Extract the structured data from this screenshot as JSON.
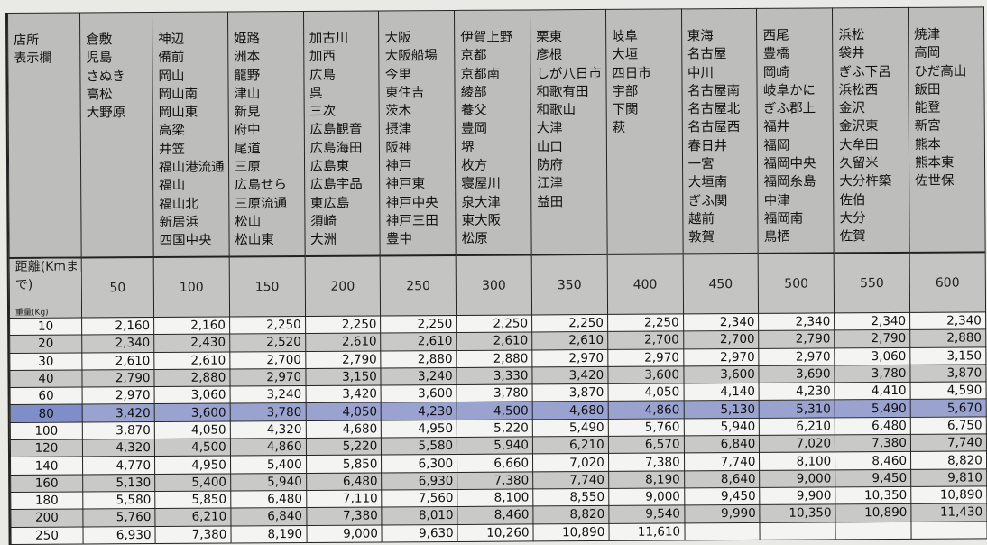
{
  "header_label": [
    "店所",
    "表示欄"
  ],
  "distance_label": "距離(Kmまで)",
  "weight_label": "重量(Kg)",
  "columns": [
    {
      "distance": "50",
      "stations": [
        "倉敷",
        "児島",
        "さぬき",
        "高松",
        "大野原"
      ]
    },
    {
      "distance": "100",
      "stations": [
        "神辺",
        "備前",
        "岡山",
        "岡山南",
        "岡山東",
        "高梁",
        "井笠",
        "福山港流通",
        "福山",
        "福山北",
        "新居浜",
        "四国中央"
      ]
    },
    {
      "distance": "150",
      "stations": [
        "姫路",
        "洲本",
        "龍野",
        "津山",
        "新見",
        "府中",
        "尾道",
        "三原",
        "広島せら",
        "三原流通",
        "松山",
        "松山東"
      ]
    },
    {
      "distance": "200",
      "stations": [
        "加古川",
        "加西",
        "広島",
        "呉",
        "三次",
        "広島観音",
        "広島海田",
        "広島東",
        "広島宇品",
        "東広島",
        "須崎",
        "大洲"
      ]
    },
    {
      "distance": "250",
      "stations": [
        "大阪",
        "大阪船場",
        "今里",
        "東住吉",
        "茨木",
        "摂津",
        "阪神",
        "神戸",
        "神戸東",
        "神戸中央",
        "神戸三田",
        "豊中"
      ]
    },
    {
      "distance": "300",
      "stations": [
        "伊賀上野",
        "京都",
        "京都南",
        "綾部",
        "養父",
        "豊岡",
        "堺",
        "枚方",
        "寝屋川",
        "泉大津",
        "東大阪",
        "松原"
      ]
    },
    {
      "distance": "350",
      "stations": [
        "栗東",
        "彦根",
        "しが八日市",
        "和歌有田",
        "和歌山",
        "大津",
        "山口",
        "防府",
        "江津",
        "益田"
      ]
    },
    {
      "distance": "400",
      "stations": [
        "岐阜",
        "大垣",
        "四日市",
        "宇部",
        "下関",
        "萩"
      ]
    },
    {
      "distance": "450",
      "stations": [
        "東海",
        "名古屋",
        "中川",
        "名古屋南",
        "名古屋北",
        "名古屋西",
        "春日井",
        "一宮",
        "大垣南",
        "ぎふ関",
        "越前",
        "敦賀"
      ]
    },
    {
      "distance": "500",
      "stations": [
        "西尾",
        "豊橋",
        "岡崎",
        "岐阜かに",
        "ぎふ郡上",
        "福井",
        "福岡",
        "福岡中央",
        "福岡糸島",
        "中津",
        "福岡南",
        "鳥栖"
      ]
    },
    {
      "distance": "550",
      "stations": [
        "浜松",
        "袋井",
        "ぎふ下呂",
        "浜松西",
        "金沢",
        "金沢東",
        "大牟田",
        "久留米",
        "大分杵築",
        "佐伯",
        "大分",
        "佐賀"
      ]
    },
    {
      "distance": "600",
      "stations": [
        "焼津",
        "高岡",
        "ひだ高山",
        "飯田",
        "能登",
        "新宮",
        "熊本",
        "熊本東",
        "佐世保"
      ]
    }
  ],
  "highlighted_weight": "80",
  "highlight_color": "#7f8dc8",
  "rows": [
    {
      "weight": "10",
      "prices": [
        "2,160",
        "2,160",
        "2,250",
        "2,250",
        "2,250",
        "2,250",
        "2,250",
        "2,250",
        "2,340",
        "2,340",
        "2,340",
        "2,340"
      ]
    },
    {
      "weight": "20",
      "prices": [
        "2,340",
        "2,430",
        "2,520",
        "2,610",
        "2,610",
        "2,610",
        "2,610",
        "2,700",
        "2,700",
        "2,790",
        "2,790",
        "2,880"
      ]
    },
    {
      "weight": "30",
      "prices": [
        "2,610",
        "2,610",
        "2,700",
        "2,790",
        "2,880",
        "2,880",
        "2,970",
        "2,970",
        "2,970",
        "2,970",
        "3,060",
        "3,150"
      ]
    },
    {
      "weight": "40",
      "prices": [
        "2,790",
        "2,880",
        "2,970",
        "3,150",
        "3,240",
        "3,330",
        "3,420",
        "3,600",
        "3,600",
        "3,690",
        "3,780",
        "3,870"
      ]
    },
    {
      "weight": "60",
      "prices": [
        "2,970",
        "3,060",
        "3,240",
        "3,420",
        "3,600",
        "3,780",
        "3,870",
        "4,050",
        "4,140",
        "4,230",
        "4,410",
        "4,590"
      ]
    },
    {
      "weight": "80",
      "prices": [
        "3,420",
        "3,600",
        "3,780",
        "4,050",
        "4,230",
        "4,500",
        "4,680",
        "4,860",
        "5,130",
        "5,310",
        "5,490",
        "5,670"
      ]
    },
    {
      "weight": "100",
      "prices": [
        "3,870",
        "4,050",
        "4,320",
        "4,680",
        "4,950",
        "5,220",
        "5,490",
        "5,760",
        "5,940",
        "6,210",
        "6,480",
        "6,750"
      ]
    },
    {
      "weight": "120",
      "prices": [
        "4,320",
        "4,500",
        "4,860",
        "5,220",
        "5,580",
        "5,940",
        "6,210",
        "6,570",
        "6,840",
        "7,020",
        "7,380",
        "7,740"
      ]
    },
    {
      "weight": "140",
      "prices": [
        "4,770",
        "4,950",
        "5,400",
        "5,850",
        "6,300",
        "6,660",
        "7,020",
        "7,380",
        "7,740",
        "8,100",
        "8,460",
        "8,820"
      ]
    },
    {
      "weight": "160",
      "prices": [
        "5,130",
        "5,400",
        "5,940",
        "6,480",
        "6,930",
        "7,380",
        "7,740",
        "8,190",
        "8,640",
        "9,000",
        "9,450",
        "9,810"
      ]
    },
    {
      "weight": "180",
      "prices": [
        "5,580",
        "5,850",
        "6,480",
        "7,110",
        "7,560",
        "8,100",
        "8,550",
        "9,000",
        "9,450",
        "9,900",
        "10,350",
        "10,890"
      ]
    },
    {
      "weight": "200",
      "prices": [
        "5,760",
        "6,210",
        "6,840",
        "7,380",
        "8,010",
        "8,460",
        "8,820",
        "9,540",
        "9,990",
        "10,350",
        "10,890",
        "11,430"
      ]
    },
    {
      "weight": "250",
      "prices": [
        "6,930",
        "7,380",
        "8,190",
        "9,000",
        "9,630",
        "10,260",
        "10,890",
        "11,610",
        "",
        "",
        "",
        ""
      ]
    }
  ]
}
